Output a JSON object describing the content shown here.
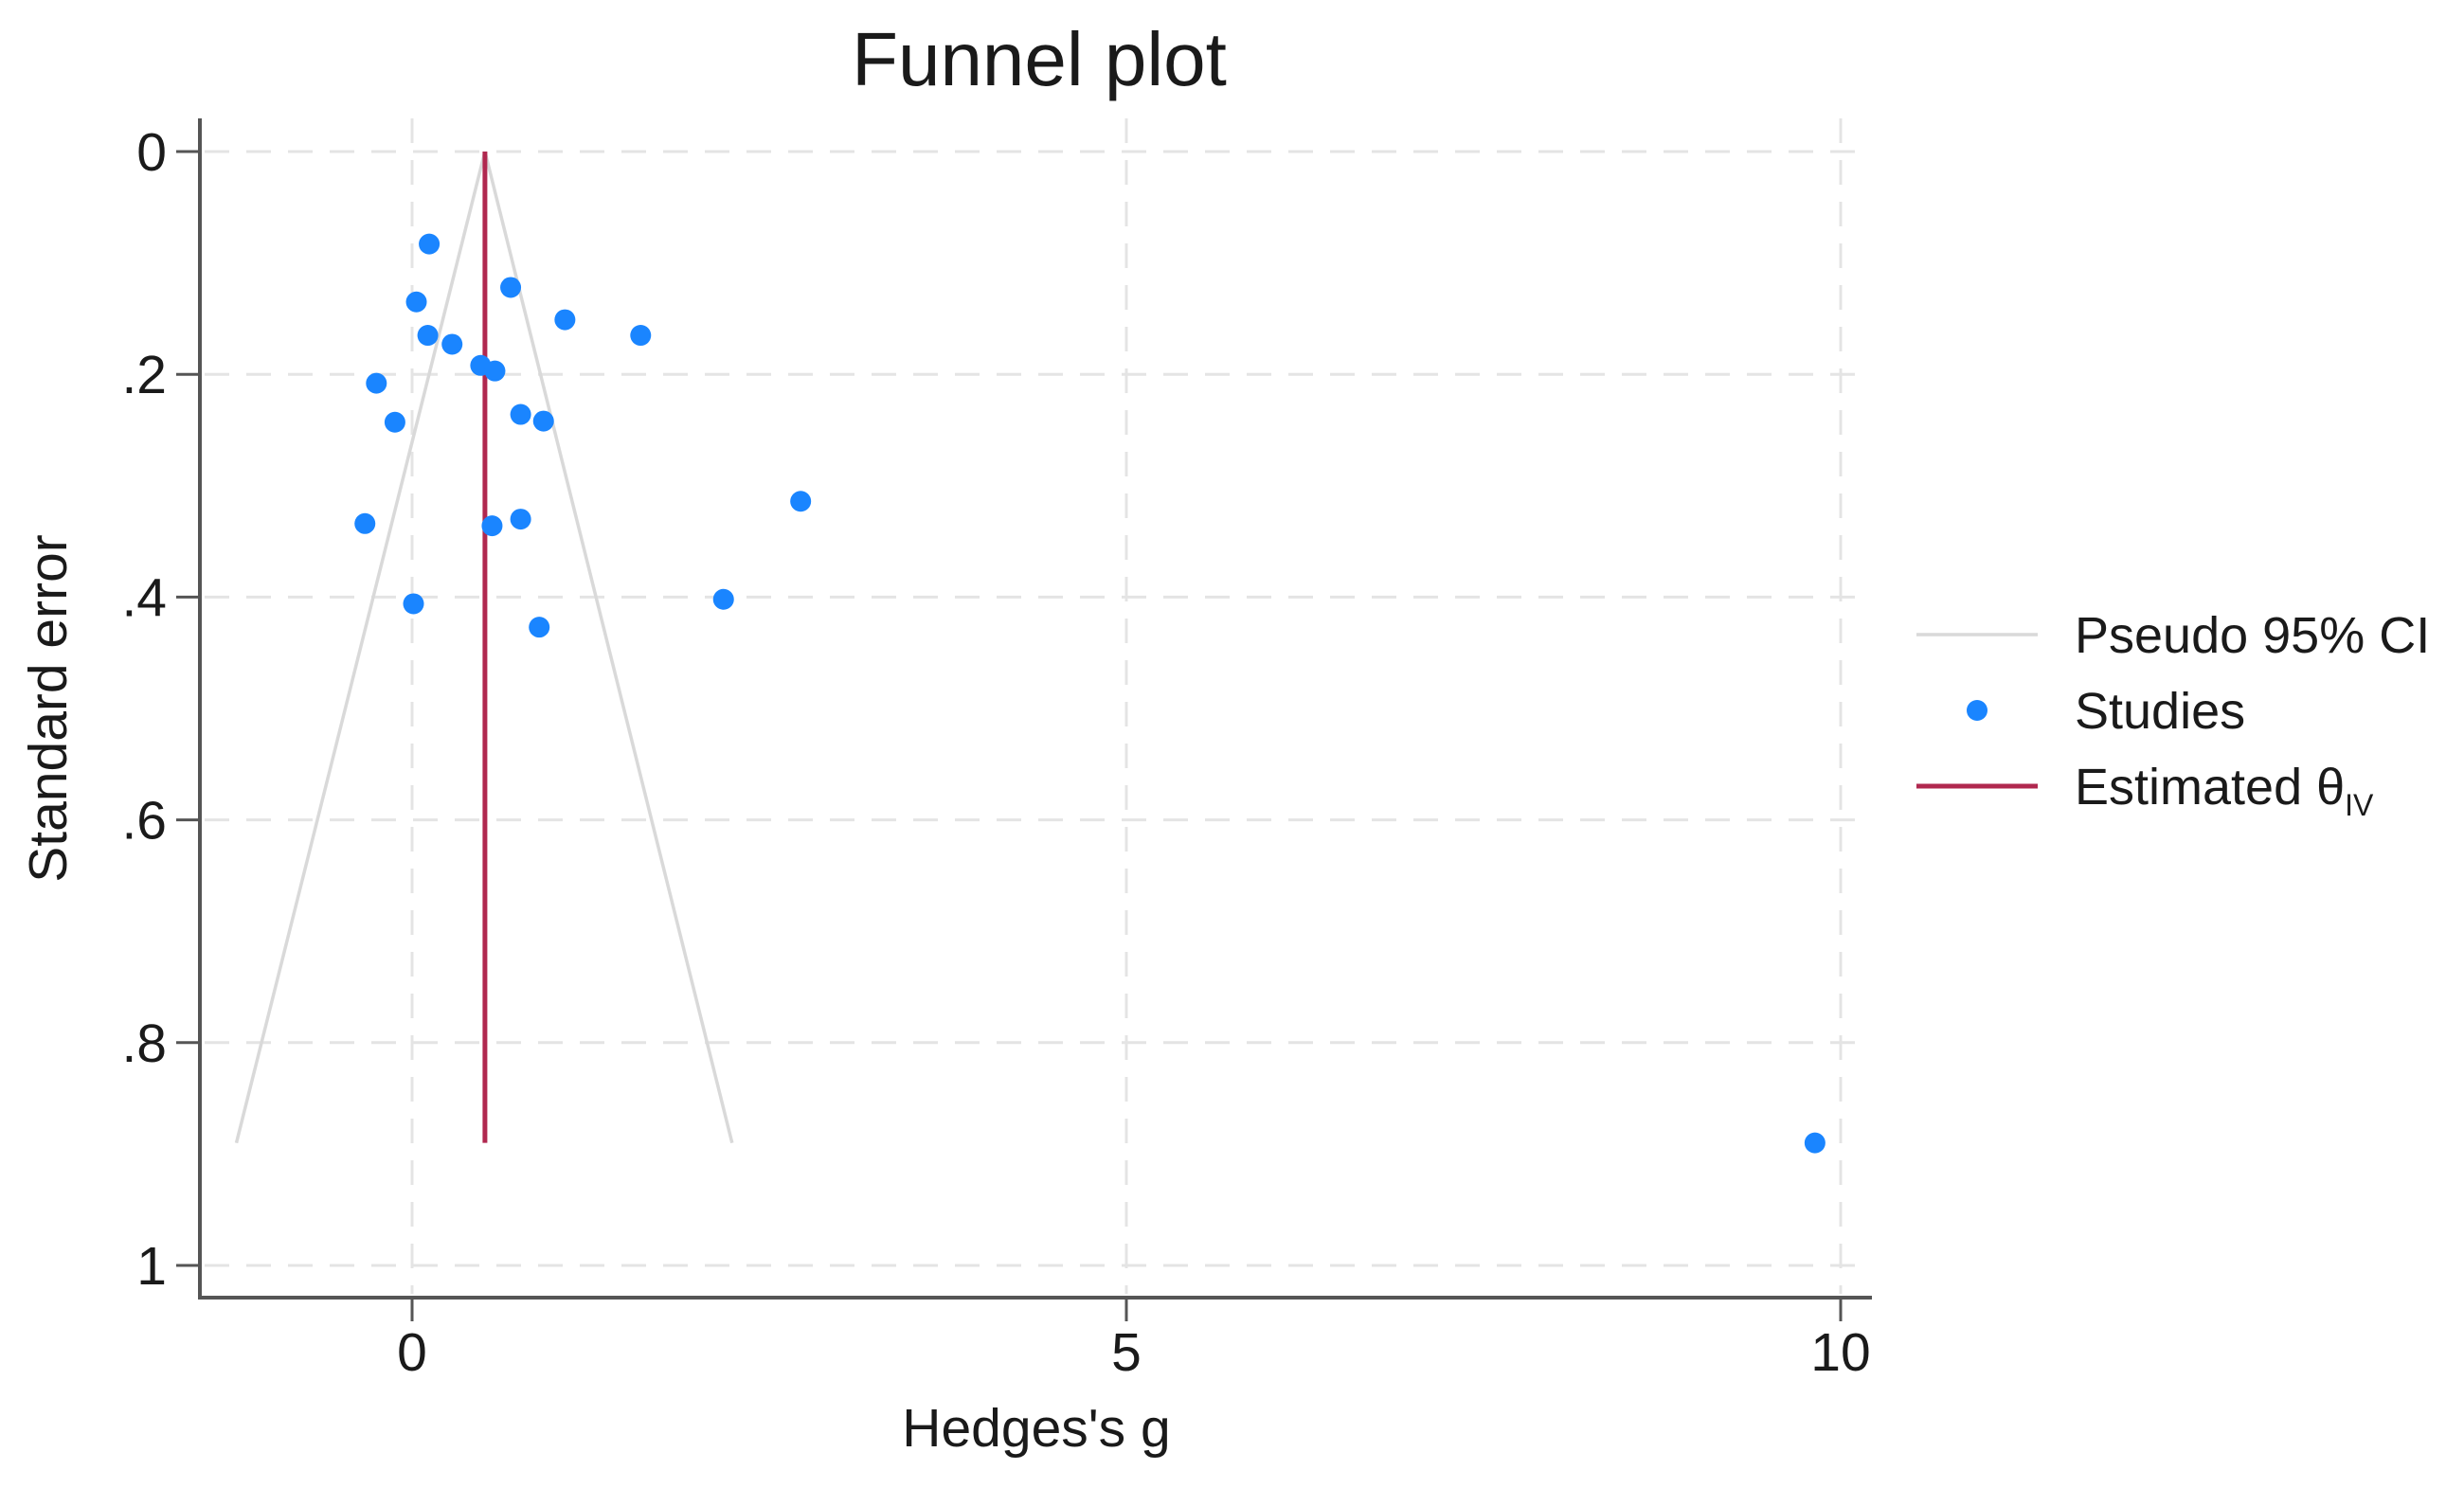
{
  "chart_data": {
    "type": "scatter",
    "title": "Funnel plot",
    "xlabel": "Hedges's g",
    "ylabel": "Standard error",
    "xlim": [
      -1.5,
      10.2
    ],
    "ylim": [
      1.03,
      0
    ],
    "y_inverted": true,
    "grid": true,
    "legend_position": "right",
    "x_ticks": [
      0,
      5,
      10
    ],
    "x_tick_labels": [
      "0",
      "5",
      "10"
    ],
    "y_ticks": [
      0,
      0.2,
      0.4,
      0.6,
      0.8,
      1
    ],
    "y_tick_labels": [
      "0",
      ".2",
      ".4",
      ".6",
      ".8",
      "1"
    ],
    "series": [
      {
        "name": "Studies",
        "kind": "scatter",
        "color": "#1a85ff",
        "points": [
          {
            "x": 0.12,
            "y": 0.083
          },
          {
            "x": 0.03,
            "y": 0.135
          },
          {
            "x": 0.69,
            "y": 0.122
          },
          {
            "x": 1.07,
            "y": 0.151
          },
          {
            "x": 1.6,
            "y": 0.165
          },
          {
            "x": 0.11,
            "y": 0.165
          },
          {
            "x": 0.28,
            "y": 0.173
          },
          {
            "x": 0.48,
            "y": 0.192
          },
          {
            "x": 0.58,
            "y": 0.197
          },
          {
            "x": -0.25,
            "y": 0.208
          },
          {
            "x": -0.12,
            "y": 0.243
          },
          {
            "x": 0.76,
            "y": 0.236
          },
          {
            "x": 0.92,
            "y": 0.242
          },
          {
            "x": 2.72,
            "y": 0.314
          },
          {
            "x": -0.33,
            "y": 0.334
          },
          {
            "x": 0.56,
            "y": 0.336
          },
          {
            "x": 0.76,
            "y": 0.33
          },
          {
            "x": 0.01,
            "y": 0.406
          },
          {
            "x": 2.18,
            "y": 0.402
          },
          {
            "x": 0.89,
            "y": 0.427
          },
          {
            "x": 9.82,
            "y": 0.89
          }
        ]
      },
      {
        "name": "Pseudo 95% CI",
        "kind": "line",
        "color": "#d9d9d9",
        "lines": [
          [
            {
              "x": 0.51,
              "y": 0
            },
            {
              "x": -1.23,
              "y": 0.89
            }
          ],
          [
            {
              "x": 0.51,
              "y": 0
            },
            {
              "x": 2.24,
              "y": 0.89
            }
          ]
        ]
      },
      {
        "name": "Estimated θIV",
        "kind": "vline",
        "color": "#b0284f",
        "x": 0.51,
        "y_range": [
          0,
          0.89
        ]
      }
    ],
    "legend": [
      {
        "label": "Pseudo 95% CI",
        "symbol": "line",
        "color": "#d9d9d9"
      },
      {
        "label": "Studies",
        "symbol": "dot",
        "color": "#1a85ff"
      },
      {
        "label": "Estimated θ",
        "subscript": "IV",
        "symbol": "line",
        "color": "#b0284f"
      }
    ]
  }
}
